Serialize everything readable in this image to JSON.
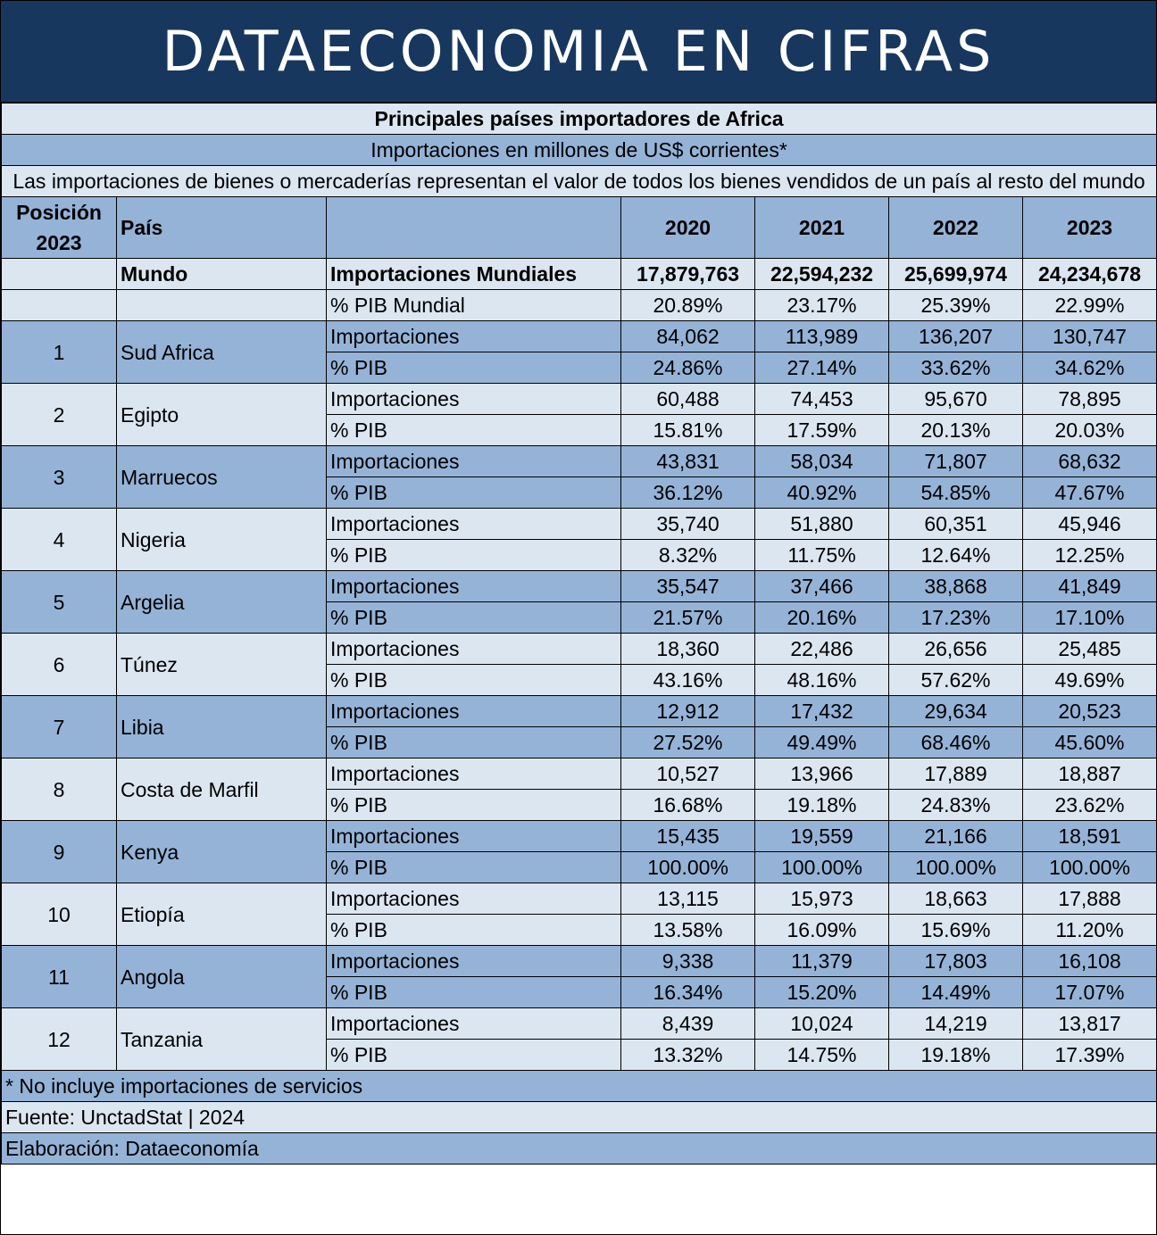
{
  "banner": "DATAECONOMIA EN CIFRAS",
  "title": "Principales países importadores de Africa",
  "subtitle": "Importaciones en millones de US$ corrientes*",
  "description": "Las importaciones de bienes o mercaderías representan el valor de todos los bienes vendidos de un país al resto del mundo",
  "header": {
    "position": "Posición 2023",
    "country": "País",
    "indicator": "",
    "years": [
      "2020",
      "2021",
      "2022",
      "2023"
    ]
  },
  "world": {
    "name": "Mundo",
    "imports_label": "Importaciones Mundiales",
    "imports": [
      "17,879,763",
      "22,594,232",
      "25,699,974",
      "24,234,678"
    ],
    "gdp_label": "% PIB Mundial",
    "gdp": [
      "20.89%",
      "23.17%",
      "25.39%",
      "22.99%"
    ]
  },
  "labels": {
    "imports": "Importaciones",
    "gdp": "% PIB"
  },
  "countries": [
    {
      "pos": "1",
      "name": "Sud Africa",
      "imports": [
        "84,062",
        "113,989",
        "136,207",
        "130,747"
      ],
      "gdp": [
        "24.86%",
        "27.14%",
        "33.62%",
        "34.62%"
      ]
    },
    {
      "pos": "2",
      "name": "Egipto",
      "imports": [
        "60,488",
        "74,453",
        "95,670",
        "78,895"
      ],
      "gdp": [
        "15.81%",
        "17.59%",
        "20.13%",
        "20.03%"
      ]
    },
    {
      "pos": "3",
      "name": "Marruecos",
      "imports": [
        "43,831",
        "58,034",
        "71,807",
        "68,632"
      ],
      "gdp": [
        "36.12%",
        "40.92%",
        "54.85%",
        "47.67%"
      ]
    },
    {
      "pos": "4",
      "name": "Nigeria",
      "imports": [
        "35,740",
        "51,880",
        "60,351",
        "45,946"
      ],
      "gdp": [
        "8.32%",
        "11.75%",
        "12.64%",
        "12.25%"
      ]
    },
    {
      "pos": "5",
      "name": "Argelia",
      "imports": [
        "35,547",
        "37,466",
        "38,868",
        "41,849"
      ],
      "gdp": [
        "21.57%",
        "20.16%",
        "17.23%",
        "17.10%"
      ]
    },
    {
      "pos": "6",
      "name": "Túnez",
      "imports": [
        "18,360",
        "22,486",
        "26,656",
        "25,485"
      ],
      "gdp": [
        "43.16%",
        "48.16%",
        "57.62%",
        "49.69%"
      ]
    },
    {
      "pos": "7",
      "name": "Libia",
      "imports": [
        "12,912",
        "17,432",
        "29,634",
        "20,523"
      ],
      "gdp": [
        "27.52%",
        "49.49%",
        "68.46%",
        "45.60%"
      ]
    },
    {
      "pos": "8",
      "name": "Costa de Marfil",
      "imports": [
        "10,527",
        "13,966",
        "17,889",
        "18,887"
      ],
      "gdp": [
        "16.68%",
        "19.18%",
        "24.83%",
        "23.62%"
      ]
    },
    {
      "pos": "9",
      "name": "Kenya",
      "imports": [
        "15,435",
        "19,559",
        "21,166",
        "18,591"
      ],
      "gdp": [
        "100.00%",
        "100.00%",
        "100.00%",
        "100.00%"
      ]
    },
    {
      "pos": "10",
      "name": "Etiopía",
      "imports": [
        "13,115",
        "15,973",
        "18,663",
        "17,888"
      ],
      "gdp": [
        "13.58%",
        "16.09%",
        "15.69%",
        "11.20%"
      ]
    },
    {
      "pos": "11",
      "name": "Angola",
      "imports": [
        "9,338",
        "11,379",
        "17,803",
        "16,108"
      ],
      "gdp": [
        "16.34%",
        "15.20%",
        "14.49%",
        "17.07%"
      ]
    },
    {
      "pos": "12",
      "name": "Tanzania",
      "imports": [
        "8,439",
        "10,024",
        "14,219",
        "13,817"
      ],
      "gdp": [
        "13.32%",
        "14.75%",
        "19.18%",
        "17.39%"
      ]
    }
  ],
  "footer": {
    "note": "* No incluye importaciones de servicios",
    "source": "Fuente: UnctadStat | 2024",
    "author": "Elaboración: Dataeconomía"
  },
  "colors": {
    "banner": "#17375e",
    "band_dark": "#95b3d7",
    "band_light": "#dce6f1"
  }
}
